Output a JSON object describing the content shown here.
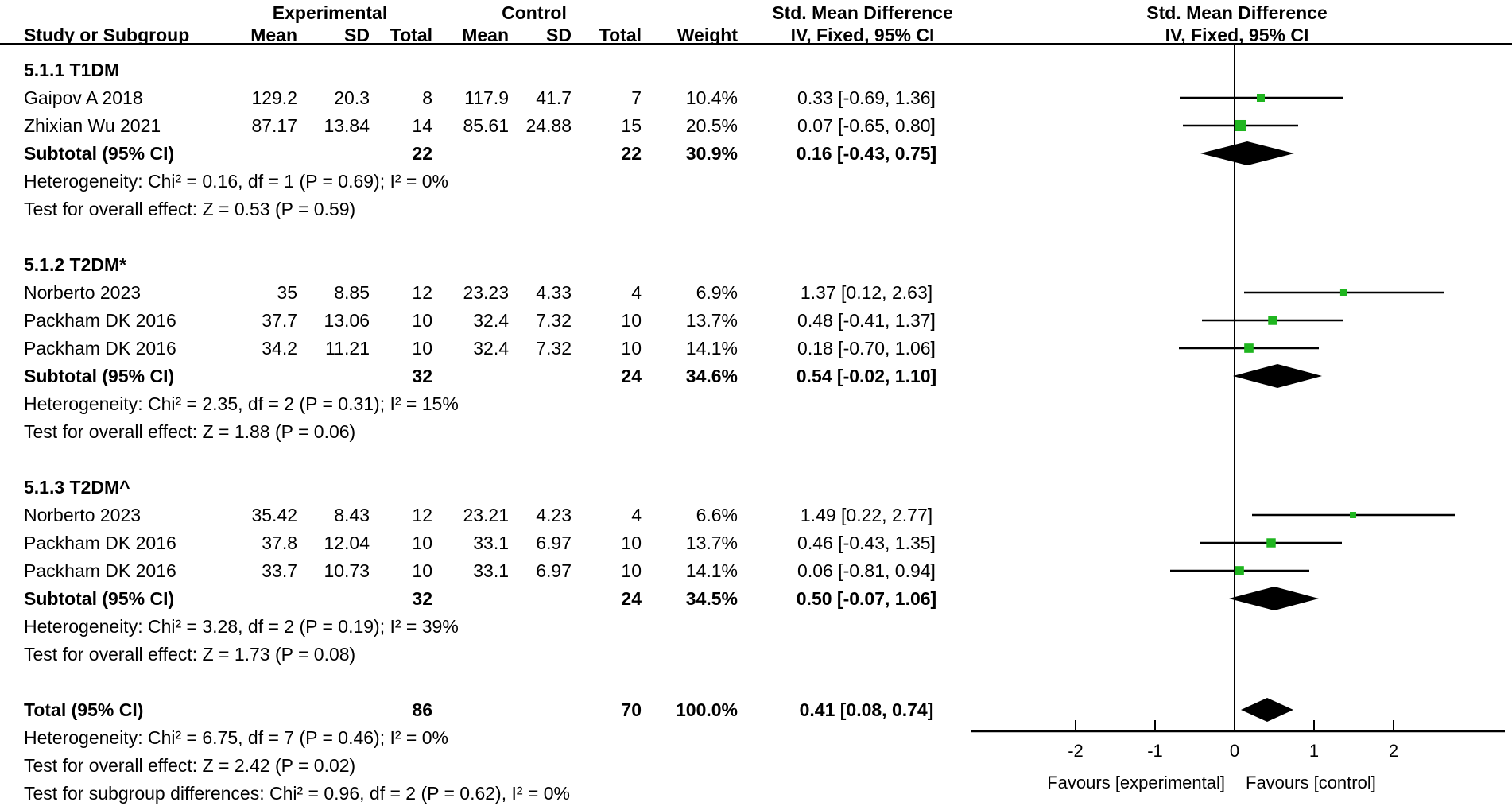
{
  "header": {
    "group_experimental": "Experimental",
    "group_control": "Control",
    "smd_text_col": "Std. Mean Difference",
    "smd_plot_col": "Std. Mean Difference",
    "col_study": "Study or Subgroup",
    "col_mean_exp": "Mean",
    "col_sd_exp": "SD",
    "col_total_exp": "Total",
    "col_mean_ctl": "Mean",
    "col_sd_ctl": "SD",
    "col_total_ctl": "Total",
    "col_weight": "Weight",
    "col_ci_text": "IV, Fixed, 95% CI",
    "col_ci_plot": "IV, Fixed, 95% CI"
  },
  "rows": [
    {
      "type": "section",
      "label": "5.1.1 T1DM"
    },
    {
      "type": "study",
      "label": "Gaipov A 2018",
      "exp_mean": "129.2",
      "exp_sd": "20.3",
      "exp_total": "8",
      "ctl_mean": "117.9",
      "ctl_sd": "41.7",
      "ctl_total": "7",
      "weight": "10.4%",
      "ci_text": "0.33 [-0.69, 1.36]"
    },
    {
      "type": "study",
      "label": "Zhixian Wu 2021",
      "exp_mean": "87.17",
      "exp_sd": "13.84",
      "exp_total": "14",
      "ctl_mean": "85.61",
      "ctl_sd": "24.88",
      "ctl_total": "15",
      "weight": "20.5%",
      "ci_text": "0.07 [-0.65, 0.80]"
    },
    {
      "type": "subtotal",
      "label": "Subtotal (95% CI)",
      "exp_total": "22",
      "ctl_total": "22",
      "weight": "30.9%",
      "ci_text": "0.16 [-0.43, 0.75]"
    },
    {
      "type": "note",
      "label": "Heterogeneity: Chi² = 0.16, df = 1 (P = 0.69); I² = 0%"
    },
    {
      "type": "note",
      "label": "Test for overall effect: Z = 0.53 (P = 0.59)"
    },
    {
      "type": "blank",
      "label": ""
    },
    {
      "type": "section",
      "label": "5.1.2 T2DM*"
    },
    {
      "type": "study",
      "label": "Norberto 2023",
      "exp_mean": "35",
      "exp_sd": "8.85",
      "exp_total": "12",
      "ctl_mean": "23.23",
      "ctl_sd": "4.33",
      "ctl_total": "4",
      "weight": "6.9%",
      "ci_text": "1.37 [0.12, 2.63]"
    },
    {
      "type": "study",
      "label": "Packham DK 2016",
      "exp_mean": "37.7",
      "exp_sd": "13.06",
      "exp_total": "10",
      "ctl_mean": "32.4",
      "ctl_sd": "7.32",
      "ctl_total": "10",
      "weight": "13.7%",
      "ci_text": "0.48 [-0.41, 1.37]"
    },
    {
      "type": "study",
      "label": "Packham DK 2016",
      "exp_mean": "34.2",
      "exp_sd": "11.21",
      "exp_total": "10",
      "ctl_mean": "32.4",
      "ctl_sd": "7.32",
      "ctl_total": "10",
      "weight": "14.1%",
      "ci_text": "0.18 [-0.70, 1.06]"
    },
    {
      "type": "subtotal",
      "label": "Subtotal (95% CI)",
      "exp_total": "32",
      "ctl_total": "24",
      "weight": "34.6%",
      "ci_text": "0.54 [-0.02, 1.10]"
    },
    {
      "type": "note",
      "label": "Heterogeneity: Chi² = 2.35, df = 2 (P = 0.31); I² = 15%"
    },
    {
      "type": "note",
      "label": "Test for overall effect: Z = 1.88 (P = 0.06)"
    },
    {
      "type": "blank",
      "label": ""
    },
    {
      "type": "section",
      "label": "5.1.3 T2DM^"
    },
    {
      "type": "study",
      "label": "Norberto 2023",
      "exp_mean": "35.42",
      "exp_sd": "8.43",
      "exp_total": "12",
      "ctl_mean": "23.21",
      "ctl_sd": "4.23",
      "ctl_total": "4",
      "weight": "6.6%",
      "ci_text": "1.49 [0.22, 2.77]"
    },
    {
      "type": "study",
      "label": "Packham DK 2016",
      "exp_mean": "37.8",
      "exp_sd": "12.04",
      "exp_total": "10",
      "ctl_mean": "33.1",
      "ctl_sd": "6.97",
      "ctl_total": "10",
      "weight": "13.7%",
      "ci_text": "0.46 [-0.43, 1.35]"
    },
    {
      "type": "study",
      "label": "Packham DK 2016",
      "exp_mean": "33.7",
      "exp_sd": "10.73",
      "exp_total": "10",
      "ctl_mean": "33.1",
      "ctl_sd": "6.97",
      "ctl_total": "10",
      "weight": "14.1%",
      "ci_text": "0.06 [-0.81, 0.94]"
    },
    {
      "type": "subtotal",
      "label": "Subtotal (95% CI)",
      "exp_total": "32",
      "ctl_total": "24",
      "weight": "34.5%",
      "ci_text": "0.50 [-0.07, 1.06]"
    },
    {
      "type": "note",
      "label": "Heterogeneity: Chi² = 3.28, df = 2 (P = 0.19); I² = 39%"
    },
    {
      "type": "note",
      "label": "Test for overall effect: Z = 1.73 (P = 0.08)"
    },
    {
      "type": "blank",
      "label": ""
    },
    {
      "type": "total",
      "label": "Total (95% CI)",
      "exp_total": "86",
      "ctl_total": "70",
      "weight": "100.0%",
      "ci_text": "0.41 [0.08, 0.74]"
    },
    {
      "type": "note",
      "label": "Heterogeneity: Chi² = 6.75, df = 7 (P = 0.46); I² = 0%"
    },
    {
      "type": "note",
      "label": "Test for overall effect: Z = 2.42 (P = 0.02)"
    },
    {
      "type": "note",
      "label": "Test for subgroup differences: Chi² = 0.96, df = 2 (P = 0.62), I² = 0%"
    }
  ],
  "chart_data": {
    "type": "forest",
    "title": "Std. Mean Difference",
    "method": "IV, Fixed, 95% CI",
    "axis": {
      "ticks": [
        -2,
        -1,
        0,
        1,
        2
      ],
      "range": [
        -3.3,
        3.4
      ],
      "zero_line_at": 0
    },
    "favours_left": "Favours [experimental]",
    "favours_right": "Favours [control]",
    "marker_color": "#1FB51F",
    "line_color": "#000000",
    "studies": [
      {
        "row": 1,
        "label": "Gaipov A 2018",
        "est": 0.33,
        "lo": -0.69,
        "hi": 1.36,
        "weight_pct": 10.4
      },
      {
        "row": 2,
        "label": "Zhixian Wu 2021",
        "est": 0.07,
        "lo": -0.65,
        "hi": 0.8,
        "weight_pct": 20.5
      },
      {
        "row": 8,
        "label": "Norberto 2023",
        "est": 1.37,
        "lo": 0.12,
        "hi": 2.63,
        "weight_pct": 6.9
      },
      {
        "row": 9,
        "label": "Packham DK 2016",
        "est": 0.48,
        "lo": -0.41,
        "hi": 1.37,
        "weight_pct": 13.7
      },
      {
        "row": 10,
        "label": "Packham DK 2016",
        "est": 0.18,
        "lo": -0.7,
        "hi": 1.06,
        "weight_pct": 14.1
      },
      {
        "row": 16,
        "label": "Norberto 2023",
        "est": 1.49,
        "lo": 0.22,
        "hi": 2.77,
        "weight_pct": 6.6
      },
      {
        "row": 17,
        "label": "Packham DK 2016",
        "est": 0.46,
        "lo": -0.43,
        "hi": 1.35,
        "weight_pct": 13.7
      },
      {
        "row": 18,
        "label": "Packham DK 2016",
        "est": 0.06,
        "lo": -0.81,
        "hi": 0.94,
        "weight_pct": 14.1
      }
    ],
    "diamonds": [
      {
        "row": 3,
        "label": "Subtotal 5.1.1 T1DM",
        "est": 0.16,
        "lo": -0.43,
        "hi": 0.75
      },
      {
        "row": 11,
        "label": "Subtotal 5.1.2 T2DM*",
        "est": 0.54,
        "lo": -0.02,
        "hi": 1.1
      },
      {
        "row": 19,
        "label": "Subtotal 5.1.3 T2DM^",
        "est": 0.5,
        "lo": -0.07,
        "hi": 1.06
      },
      {
        "row": 23,
        "label": "Total",
        "est": 0.41,
        "lo": 0.08,
        "hi": 0.74
      }
    ]
  }
}
